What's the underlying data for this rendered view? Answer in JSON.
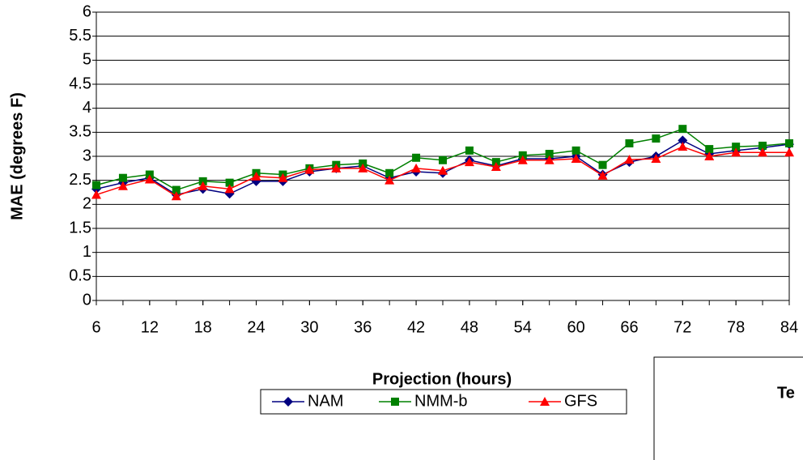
{
  "chart_data": {
    "type": "line",
    "x_label": "Projection (hours)",
    "y_label": "MAE (degrees F)",
    "x": [
      6,
      9,
      12,
      15,
      18,
      21,
      24,
      27,
      30,
      33,
      36,
      39,
      42,
      45,
      48,
      51,
      54,
      57,
      60,
      63,
      66,
      69,
      72,
      75,
      78,
      81,
      84
    ],
    "series": [
      {
        "name": "NAM",
        "color": "#000080",
        "marker": "diamond",
        "values": [
          2.32,
          2.45,
          2.55,
          2.2,
          2.32,
          2.22,
          2.48,
          2.48,
          2.68,
          2.75,
          2.8,
          2.55,
          2.68,
          2.65,
          2.92,
          2.8,
          2.95,
          2.95,
          3.0,
          2.62,
          2.88,
          3.0,
          3.33,
          3.05,
          3.12,
          3.18,
          3.25
        ]
      },
      {
        "name": "NMM-b",
        "color": "#008000",
        "marker": "square",
        "values": [
          2.4,
          2.55,
          2.62,
          2.3,
          2.48,
          2.45,
          2.65,
          2.62,
          2.75,
          2.82,
          2.85,
          2.65,
          2.97,
          2.92,
          3.12,
          2.88,
          3.02,
          3.05,
          3.12,
          2.82,
          3.27,
          3.37,
          3.57,
          3.15,
          3.2,
          3.22,
          3.27
        ]
      },
      {
        "name": "GFS",
        "color": "#ff0000",
        "marker": "triangle",
        "values": [
          2.2,
          2.38,
          2.52,
          2.17,
          2.38,
          2.32,
          2.58,
          2.55,
          2.72,
          2.75,
          2.75,
          2.5,
          2.75,
          2.7,
          2.88,
          2.78,
          2.92,
          2.92,
          2.95,
          2.6,
          2.93,
          2.95,
          3.2,
          3.0,
          3.08,
          3.08,
          3.08
        ]
      }
    ],
    "xlim": [
      6,
      84
    ],
    "xticks": [
      6,
      12,
      18,
      24,
      30,
      36,
      42,
      48,
      54,
      60,
      66,
      72,
      78,
      84
    ],
    "ylim": [
      0,
      6
    ],
    "yticks": [
      0,
      0.5,
      1,
      1.5,
      2,
      2.5,
      3,
      3.5,
      4,
      4.5,
      5,
      5.5,
      6
    ],
    "grid": true,
    "legend": "bottom"
  },
  "inset": {
    "title": "Te"
  }
}
